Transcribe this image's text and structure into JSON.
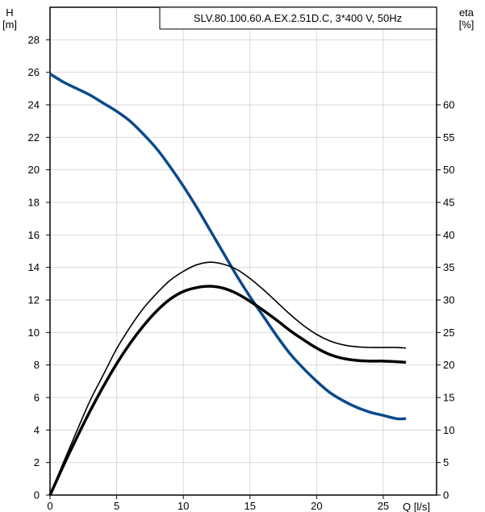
{
  "chart_data": {
    "type": "line",
    "title": "SLV.80.100.60.A.EX.2.51D.C, 3*400 V, 50Hz",
    "xlabel": "Q [l/s]",
    "ylabel_left": [
      "H",
      "[m]"
    ],
    "ylabel_right": [
      "eta",
      "[%]"
    ],
    "xlim": [
      0,
      29
    ],
    "ylim_left": [
      0,
      30
    ],
    "ylim_right": [
      0,
      75
    ],
    "x_ticks": [
      0,
      5,
      10,
      15,
      20,
      25
    ],
    "y_left_ticks": [
      0,
      2,
      4,
      6,
      8,
      10,
      12,
      14,
      16,
      18,
      20,
      22,
      24,
      26,
      28
    ],
    "y_right_ticks": [
      0,
      5,
      10,
      15,
      20,
      25,
      30,
      35,
      40,
      45,
      50,
      55,
      60
    ],
    "grid": true,
    "series": [
      {
        "axis": "left",
        "color": "#0b4a8b",
        "x": [
          0,
          1,
          2,
          3,
          4,
          5,
          6,
          7,
          8,
          9,
          10,
          11,
          12,
          13,
          14,
          15,
          16,
          17,
          18,
          19,
          20,
          21,
          22,
          23,
          24,
          25,
          26,
          26.7
        ],
        "y": [
          25.9,
          25.4,
          25.0,
          24.6,
          24.1,
          23.6,
          23.0,
          22.2,
          21.3,
          20.2,
          19.0,
          17.7,
          16.3,
          14.9,
          13.5,
          12.2,
          11.0,
          9.8,
          8.7,
          7.8,
          7.0,
          6.3,
          5.8,
          5.4,
          5.1,
          4.9,
          4.7,
          4.7
        ]
      },
      {
        "axis": "right",
        "color": "#000000",
        "x": [
          0,
          1,
          2,
          3,
          4,
          5,
          6,
          7,
          8,
          9,
          10,
          11,
          12,
          13,
          14,
          15,
          16,
          17,
          18,
          19,
          20,
          21,
          22,
          23,
          24,
          25,
          26,
          26.7
        ],
        "y": [
          0,
          5,
          9.8,
          14.5,
          18.5,
          22.5,
          25.8,
          28.7,
          31.0,
          33.0,
          34.4,
          35.4,
          35.8,
          35.5,
          34.7,
          33.3,
          31.6,
          29.7,
          27.8,
          26.1,
          24.7,
          23.7,
          23.1,
          22.8,
          22.7,
          22.7,
          22.7,
          22.6
        ]
      },
      {
        "axis": "right",
        "color": "#000000",
        "x": [
          0,
          1,
          2,
          3,
          4,
          5,
          6,
          7,
          8,
          9,
          10,
          11,
          12,
          13,
          14,
          15,
          16,
          17,
          18,
          19,
          20,
          21,
          22,
          23,
          24,
          25,
          26,
          26.7
        ],
        "y": [
          0,
          4.5,
          8.8,
          12.9,
          16.7,
          20.2,
          23.3,
          26.0,
          28.3,
          30.1,
          31.3,
          31.9,
          32.1,
          31.8,
          31.0,
          29.8,
          28.4,
          26.9,
          25.3,
          23.9,
          22.6,
          21.6,
          21.0,
          20.7,
          20.6,
          20.6,
          20.5,
          20.4
        ]
      }
    ]
  }
}
